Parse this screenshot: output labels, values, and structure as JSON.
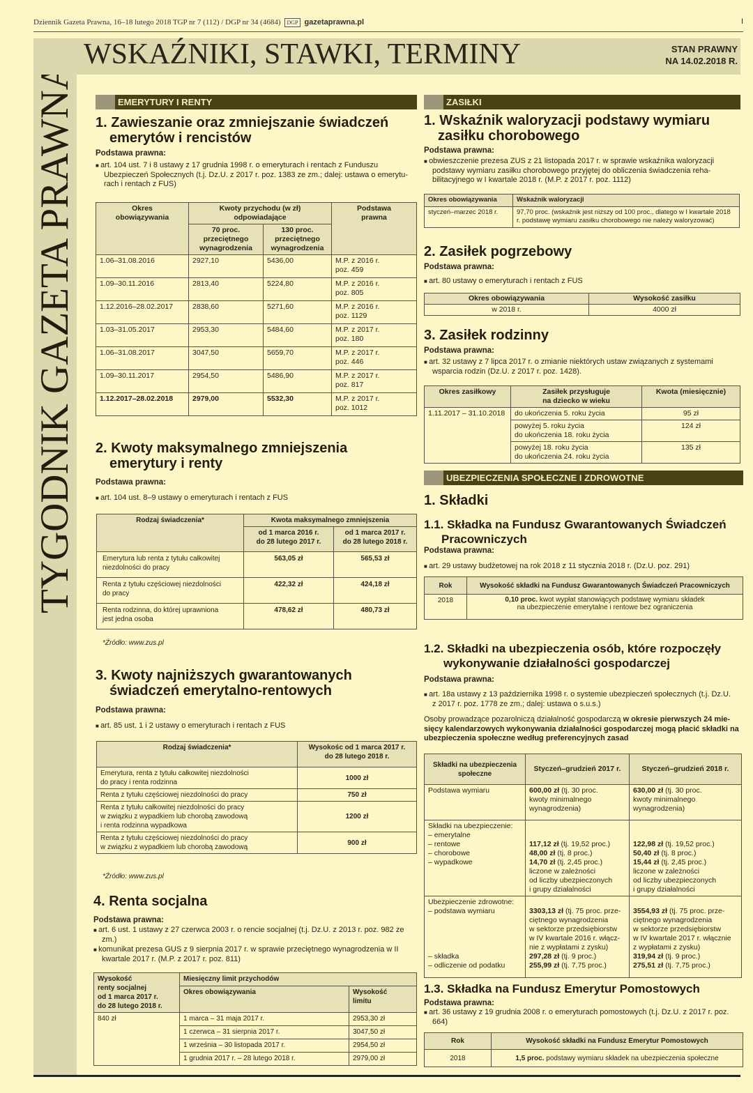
{
  "header": {
    "line": "Dziennik Gazeta Prawna, 16–18 lutego 2018 TGP nr 7 (112) / DGP nr 34 (4684)",
    "logo": "DGP",
    "site": "gazetaprawna.pl",
    "page": "I"
  },
  "banner": {
    "title": "WSKAŹNIKI, STAWKI, TERMINY",
    "status": "STAN PRAWNY\nNA 14.02.2018 R."
  },
  "vertical_title": "TYGODNIK GAZETA PRAWNA",
  "colors": {
    "background": "#fdf7c8",
    "banner": "#dcd8ad",
    "section_bar": "#4a4116",
    "table_header": "#e6e1b6"
  },
  "left": {
    "category": "EMERYTURY I RENTY",
    "s1": {
      "title": "1. Zawieszanie oraz zmniejszanie świadczeń emerytów i rencistów",
      "legal": "Podstawa prawna:",
      "bullet": "art. 104 ust. 7 i 8 ustawy z 17 grudnia 1998 r. o emeryturach i rentach z Funduszu Ubezpieczeń Społecznych (t.j. Dz.U. z 2017 r. poz. 1383 ze zm.; dalej: ustawa o emerytu-rach i rentach z FUS)",
      "th": [
        "Okres\nobowiązywania",
        "Kwoty przychodu (w zł)\nodpowiadające",
        "Podstawa\nprawna",
        "70 proc.\nprzeciętnego\nwynagrodzenia",
        "130 proc.\nprzeciętnego\nwynagrodzenia"
      ],
      "rows": [
        [
          "1.06–31.08.2016",
          "2927,10",
          "5436,00",
          "M.P. z 2016 r.\npoz. 459"
        ],
        [
          "1.09–30.11.2016",
          "2813,40",
          "5224,80",
          "M.P. z 2016 r.\npoz. 805"
        ],
        [
          "1.12.2016–28.02.2017",
          "2838,60",
          "5271,60",
          "M.P. z 2016 r.\npoz. 1129"
        ],
        [
          "1.03–31.05.2017",
          "2953,30",
          "5484,60",
          "M.P. z 2017 r.\npoz. 180"
        ],
        [
          "1.06–31.08.2017",
          "3047,50",
          "5659,70",
          "M.P. z 2017 r.\npoz. 446"
        ],
        [
          "1.09–30.11.2017",
          "2954,50",
          "5486,90",
          "M.P. z 2017 r.\npoz. 817"
        ],
        [
          "1.12.2017–28.02.2018",
          "2979,00",
          "5532,30",
          "M.P. z 2017 r.\npoz. 1012"
        ]
      ]
    },
    "s2": {
      "title": "2. Kwoty maksymalnego zmniejszenia emerytury i renty",
      "legal": "Podstawa prawna:",
      "bullet": "art. 104 ust. 8–9 ustawy o emeryturach i rentach z FUS",
      "th": [
        "Rodzaj świadczenia*",
        "Kwota maksymalnego zmniejszenia",
        "od 1 marca 2016 r.\ndo 28 lutego 2017 r.",
        "od 1 marca 2017 r.\ndo 28 lutego 2018 r."
      ],
      "rows": [
        [
          "Emerytura lub renta z tytułu całkowitej\nniezdolności do pracy",
          "563,05 zł",
          "565,53 zł"
        ],
        [
          "Renta z tytułu częściowej niezdolności\ndo pracy",
          "422,32 zł",
          "424,18 zł"
        ],
        [
          "Renta rodzinna, do której uprawniona\njest jedna osoba",
          "478,62 zł",
          "480,73 zł"
        ]
      ],
      "source": "*Źródło: www.zus.pl"
    },
    "s3": {
      "title": "3. Kwoty najniższych gwarantowanych świadczeń emerytalno-rentowych",
      "legal": "Podstawa prawna:",
      "bullet": "art. 85 ust. 1 i 2 ustawy o emeryturach i rentach z FUS",
      "th": [
        "Rodzaj świadczenia*",
        "Wysokośc od 1 marca 2017 r.\ndo 28 lutego 2018 r."
      ],
      "rows": [
        [
          "Emerytura, renta z tytułu całkowitej niezdolności\ndo pracy i renta rodzinna",
          "1000 zł"
        ],
        [
          "Renta z tytułu częściowej niezdolności do pracy",
          "750 zł"
        ],
        [
          "Renta z tytułu całkowitej niezdolności do pracy\nw związku z wypadkiem lub chorobą zawodową\ni renta rodzinna wypadkowa",
          "1200 zł"
        ],
        [
          "Renta z tytułu częściowej niezdolności do pracy\nw związku z wypadkiem lub chorobą zawodową",
          "900 zł"
        ]
      ],
      "source": "*Źródło: www.zus.pl"
    },
    "s4": {
      "title": "4. Renta socjalna",
      "legal": "Podstawa prawna:",
      "bullets": [
        "art. 6 ust. 1 ustawy z 27 czerwca 2003 r. o rencie socjalnej (t.j. Dz.U. z 2013 r. poz. 982 ze zm.)",
        "komunikat prezesa GUS z 9 sierpnia 2017 r. w sprawie przeciętnego wynagrodzenia w II kwartale 2017 r. (M.P. z 2017 r. poz. 811)"
      ],
      "th": [
        "Wysokość\nrenty socjalnej\nod 1 marca 2017 r.\ndo 28 lutego 2018 r.",
        "Miesięczny limit przychodów",
        "Okres obowiązywania",
        "Wysokość\nlimitu"
      ],
      "amount": "840 zł",
      "rows": [
        [
          "1 marca – 31 maja 2017 r.",
          "2953,30 zł"
        ],
        [
          "1 czerwca – 31 sierpnia 2017 r.",
          "3047,50 zł"
        ],
        [
          "1 września – 30 listopada 2017 r.",
          "2954,50 zł"
        ],
        [
          "1 grudnia 2017 r. – 28 lutego 2018 r.",
          "2979,00 zł"
        ]
      ]
    }
  },
  "right": {
    "category": "ZASIŁKI",
    "s1": {
      "title": "1. Wskaźnik waloryzacji podstawy wymiaru zasiłku chorobowego",
      "legal": "Podstawa prawna:",
      "bullet": "obwieszczenie prezesa ZUS z 21 listopada 2017 r. w sprawie wskaźnika waloryzacji podstawy wymiaru zasiłku chorobowego przyjętej do obliczenia świadczenia reha-bilitacyjnego w I kwartale 2018 r. (M.P. z 2017 r. poz. 1112)",
      "th": [
        "Okres obowiązywania",
        "Wskaźnik waloryzacji"
      ],
      "row": [
        "styczeń–marzec 2018 r.",
        "97,70 proc. (wskaźnik jest niższy od 100 proc., dlatego w I kwartale 2018 r. podstawę wymiaru zasiłku chorobowego nie należy waloryzować)"
      ]
    },
    "s2": {
      "title": "2. Zasiłek pogrzebowy",
      "legal": "Podstawa prawna:",
      "bullet": "art. 80 ustawy o emeryturach i rentach z FUS",
      "th": [
        "Okres obowiązywania",
        "Wysokość zasiłku"
      ],
      "row": [
        "w 2018 r.",
        "4000 zł"
      ]
    },
    "s3": {
      "title": "3. Zasiłek rodzinny",
      "legal": "Podstawa prawna:",
      "bullet": "art. 32 ustawy z 7 lipca 2017 r. o zmianie niektórych ustaw związanych z systemami wsparcia rodzin (Dz.U. z 2017 r. poz. 1428).",
      "th": [
        "Okres zasiłkowy",
        "Zasiłek przysługuje\nna dziecko w wieku",
        "Kwota (miesięcznie)"
      ],
      "period": "1.11.2017 – 31.10.2018",
      "rows": [
        [
          "do ukończenia 5. roku życia",
          "95 zł"
        ],
        [
          "powyżej 5. roku życia\ndo ukończenia 18. roku życia",
          "124 zł"
        ],
        [
          "powyżej 18. roku życia\ndo ukończenia 24. roku życia",
          "135 zł"
        ]
      ]
    },
    "category2": "UBEZPIECZENIA SPOŁECZNE I ZDROWOTNE",
    "skladki": "1. Składki",
    "s11": {
      "title": "1.1. Składka na Fundusz Gwarantowanych Świadczeń Pracowniczych",
      "legal": "Podstawa prawna:",
      "bullet": "art. 29 ustawy budżetowej na rok 2018 z 11 stycznia 2018 r. (Dz.U. poz. 291)",
      "th": [
        "Rok",
        "Wysokość składki na Fundusz Gwarantowanych Świadczeń Pracowniczych"
      ],
      "year": "2018",
      "bold": "0,10 proc.",
      "rest": " kwot wypłat stanowiących podstawę wymiaru składek\nna ubezpieczenie emerytalne i rentowe bez ograniczenia"
    },
    "s12": {
      "title": "1.2. Składki na ubezpieczenia osób, które rozpoczęły wykonywanie działalności gospodarczej",
      "legal": "Podstawa prawna:",
      "bullet": "art. 18a ustawy z 13 października 1998 r. o systemie ubezpieczeń społecznych (t.j. Dz.U. z 2017 r. poz. 1778 ze zm.; dalej: ustawa o s.u.s.)",
      "para_plain": "Osoby prowadzące pozarolniczą działalność gospodarczą ",
      "para_bold": "w okresie pierwszych 24 mie-sięcy kalendarzowych wykonywania działalności gospodarczej mogą płacić składki na ubezpieczenia społeczne według preferencyjnych zasad",
      "th": [
        "Składki na ubezpieczenia\nspołeczne",
        "Styczeń–grudzień 2017 r.",
        "Styczeń–grudzień 2018 r."
      ],
      "r1": {
        "label": "Podstawa wymiaru",
        "a_b": "600,00 zł",
        "a": " (tj. 30 proc.\nkwoty minimalnego\nwynagrodzenia)",
        "b_b": "630,00 zł",
        "b": " (tj. 30 proc.\nkwoty minimalnego\nwynagrodzenia)"
      },
      "r2": {
        "label": "Składki na ubezpieczenie:\n– emerytalne\n– rentowe\n– chorobowe\n– wypadkowe",
        "a": [
          [
            "117,12 zł",
            " (tj. 19,52 proc.)"
          ],
          [
            "48,00 zł",
            " (tj. 8 proc.)"
          ],
          [
            "14,70 zł",
            " (tj. 2,45 proc.)"
          ]
        ],
        "a_tail": "liczone w zależności\nod liczby ubezpieczonych\ni grupy działalności",
        "b": [
          [
            "122,98 zł",
            " (tj. 19,52 proc.)"
          ],
          [
            "50,40 zł",
            " (tj. 8 proc.)"
          ],
          [
            "15,44 zł",
            " (tj. 2,45 proc.)"
          ]
        ],
        "b_tail": "liczone w zależności\nod liczby ubezpieczonych\ni grupy działalności"
      },
      "r3": {
        "label": "Ubezpieczenie zdrowotne:\n– podstawa wymiaru\n\n\n\n\n– składka\n– odliczenie od podatku",
        "a": [
          [
            "3303,13 zł",
            " (tj. 75 proc. prze-\nciętnego wynagrodzenia\nw sektorze przedsiębiorstw\nw IV kwartale 2016 r. włącz-\nnie z wypłatami z zysku)"
          ],
          [
            "297,28 zł",
            " (tj. 9 proc.)"
          ],
          [
            "255,99 zł",
            " (tj. 7,75 proc.)"
          ]
        ],
        "b": [
          [
            "3554,93 zł",
            " (tj. 75 proc. prze-\nciętnego wynagrodzenia\nw sektorze przedsiębiorstw\nw IV kwartale 2017 r. włącznie\nz wypłatami z zysku)"
          ],
          [
            "319,94 zł",
            " (tj. 9 proc.)"
          ],
          [
            "275,51 zł",
            " (tj. 7,75 proc.)"
          ]
        ]
      }
    },
    "s13": {
      "title": "1.3. Składka na Fundusz Emerytur Pomostowych",
      "legal": "Podstawa prawna:",
      "bullet": "art. 36 ustawy z 19 grudnia 2008 r. o emeryturach pomostowych (t.j. Dz.U. z 2017 r. poz. 664)",
      "th": [
        "Rok",
        "Wysokość składki na Fundusz Emerytur Pomostowych"
      ],
      "year": "2018",
      "bold": "1,5 proc.",
      "rest": " podstawy wymiaru składek na ubezpieczenia społeczne"
    }
  }
}
